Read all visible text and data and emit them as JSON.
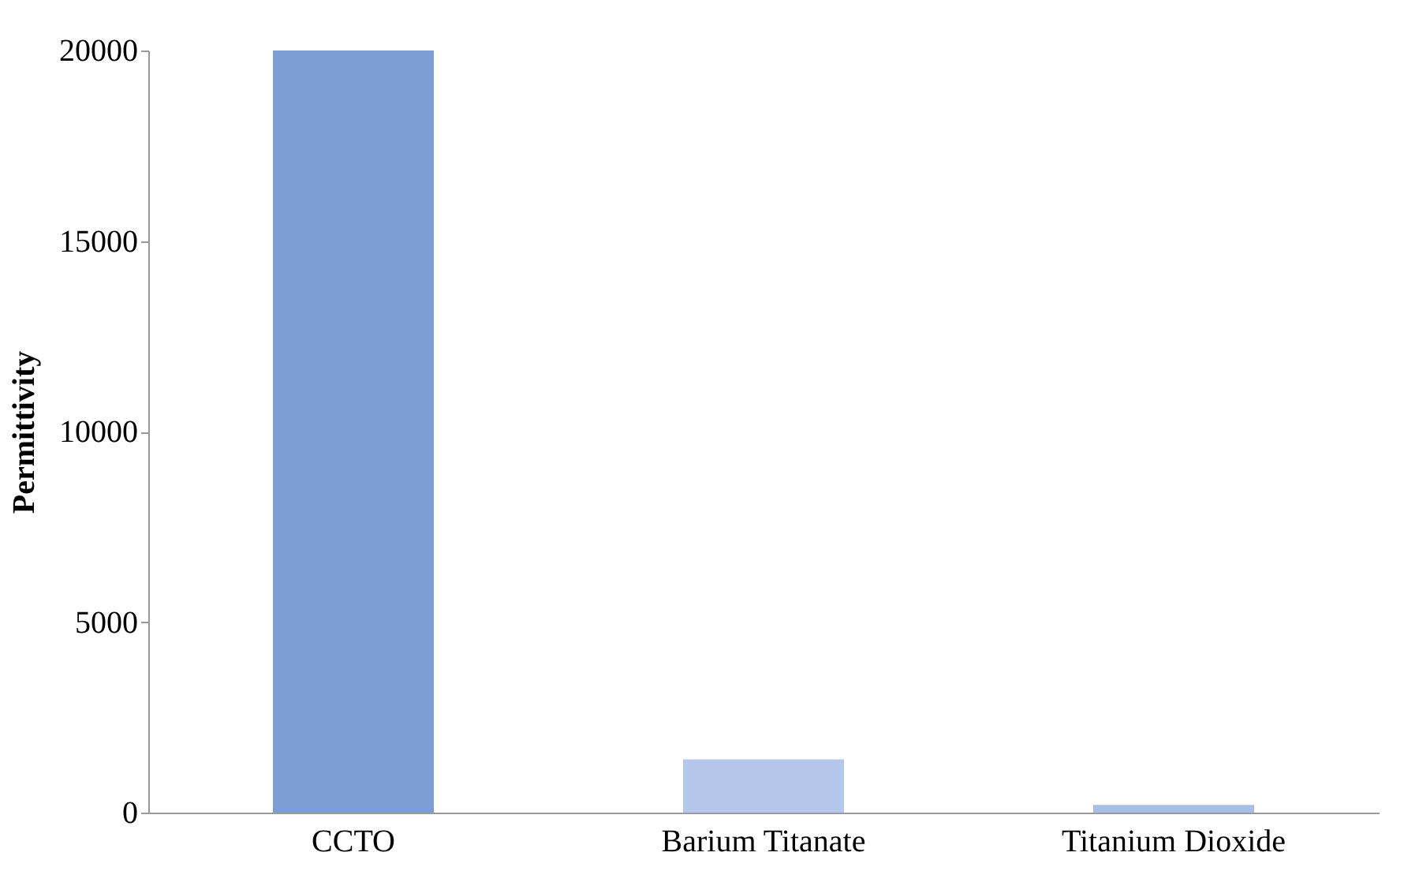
{
  "chart_data": {
    "type": "bar",
    "ylabel": "Permittivity",
    "categories": [
      "CCTO",
      "Barium Titanate",
      "Titanium Dioxide"
    ],
    "values": [
      20000,
      1400,
      200
    ],
    "colors": [
      "#7b9dd4",
      "#b4c7ea",
      "#a7bde6"
    ],
    "ylim": [
      0,
      20000
    ],
    "yticks": [
      0,
      5000,
      10000,
      15000,
      20000
    ],
    "grid": false
  }
}
